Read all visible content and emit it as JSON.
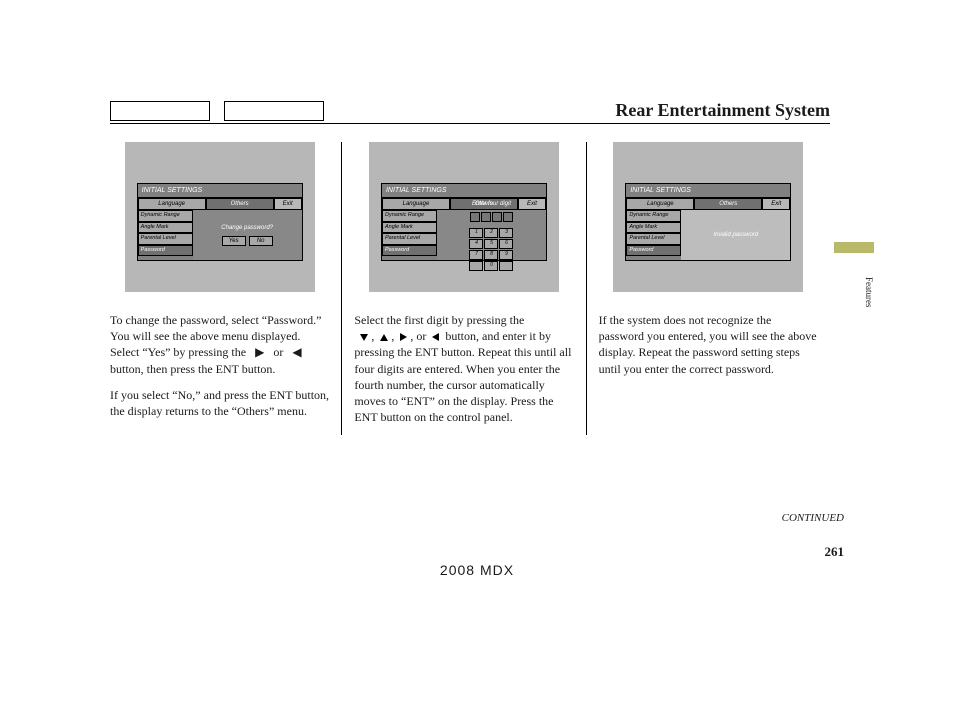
{
  "header": {
    "title": "Rear Entertainment System"
  },
  "side_tab": "Features",
  "continued": "CONTINUED",
  "page_number": "261",
  "footer_model": "2008  MDX",
  "panel_common": {
    "title": "INITIAL SETTINGS",
    "tab_language": "Language",
    "tab_others": "Others",
    "tab_exit": "Exit",
    "menu_dynamic": "Dynamic Range",
    "menu_angle": "Angle Mark",
    "menu_parental": "Parental Level",
    "menu_password": "Password"
  },
  "col1": {
    "prompt": "Change password?",
    "yes": "Yes",
    "no": "No",
    "para1": "To change the password, select “Password.” You will see the above menu displayed. Select “Yes” by pressing the   ▶   or   ◀   button, then press the ENT button.",
    "para2": "If you select “No,” and press the ENT button, the display returns to the “Others” menu."
  },
  "col2": {
    "prompt": "Enter four digit",
    "keypad": [
      "1",
      "2",
      "3",
      "4",
      "5",
      "6",
      "7",
      "8",
      "9",
      "",
      "0",
      ""
    ],
    "para1_a": "Select the first digit by pressing the",
    "para1_b": "and enter it by pressing the ENT button. Repeat this until all four digits are entered. When you enter the fourth number, the cursor automatically moves to “ENT” on the display. Press the ENT button on the control panel."
  },
  "col3": {
    "prompt": "Invalid password",
    "para1": "If the system does not recognize the password you entered, you will see the above display. Repeat the password setting steps until you enter the correct password."
  }
}
